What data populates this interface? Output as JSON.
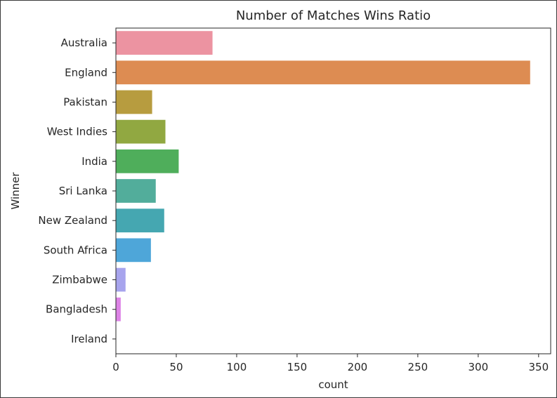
{
  "chart_data": {
    "type": "bar",
    "orientation": "horizontal",
    "title": "Number of Matches Wins Ratio",
    "xlabel": "count",
    "ylabel": "Winner",
    "xlim": [
      0,
      360
    ],
    "xticks": [
      0,
      50,
      100,
      150,
      200,
      250,
      300,
      350
    ],
    "grid": false,
    "categories": [
      "Australia",
      "England",
      "Pakistan",
      "West Indies",
      "India",
      "Sri Lanka",
      "New Zealand",
      "South Africa",
      "Zimbabwe",
      "Bangladesh",
      "Ireland"
    ],
    "values": [
      80,
      343,
      30,
      41,
      52,
      33,
      40,
      29,
      8,
      4,
      0
    ],
    "colors": [
      "#ec93a1",
      "#dd8c52",
      "#b79c3f",
      "#91a841",
      "#4fae5b",
      "#52ad9b",
      "#45a7b1",
      "#4ea6d9",
      "#a7a4ed",
      "#dd83e6",
      "#e88cc3"
    ]
  }
}
